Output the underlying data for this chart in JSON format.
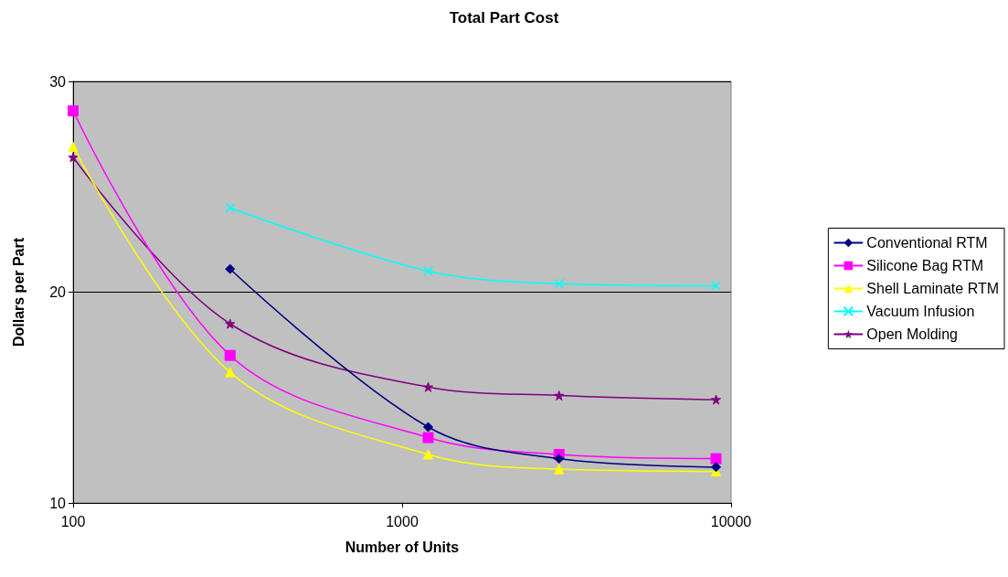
{
  "chart_data": {
    "type": "line",
    "title": "Total Part Cost",
    "xlabel": "Number of Units",
    "ylabel": "Dollars per Part",
    "x": [
      100,
      300,
      1200,
      3000,
      9000
    ],
    "series": [
      {
        "name": "Conventional RTM",
        "color": "#000080",
        "marker": "diamond",
        "values": [
          null,
          21.1,
          13.6,
          12.1,
          11.7
        ]
      },
      {
        "name": "Silicone Bag RTM",
        "color": "#ff00ff",
        "marker": "square",
        "values": [
          28.6,
          17.0,
          13.1,
          12.3,
          12.1
        ]
      },
      {
        "name": "Shell Laminate RTM",
        "color": "#ffff00",
        "marker": "triangle",
        "values": [
          26.9,
          16.2,
          12.3,
          11.6,
          11.5
        ]
      },
      {
        "name": "Vacuum Infusion",
        "color": "#00ffff",
        "marker": "cross",
        "values": [
          null,
          24.0,
          21.0,
          20.4,
          20.3
        ]
      },
      {
        "name": "Open Molding",
        "color": "#800080",
        "marker": "star",
        "values": [
          26.4,
          18.5,
          15.5,
          15.1,
          14.9
        ]
      }
    ],
    "log": "x",
    "xlim": [
      100,
      10000
    ],
    "xticks": [
      100,
      1000,
      10000
    ],
    "ylim": [
      10,
      30
    ],
    "yticks": [
      10,
      20,
      30
    ],
    "grid": "y",
    "legend": "right",
    "line_style": "solid"
  }
}
